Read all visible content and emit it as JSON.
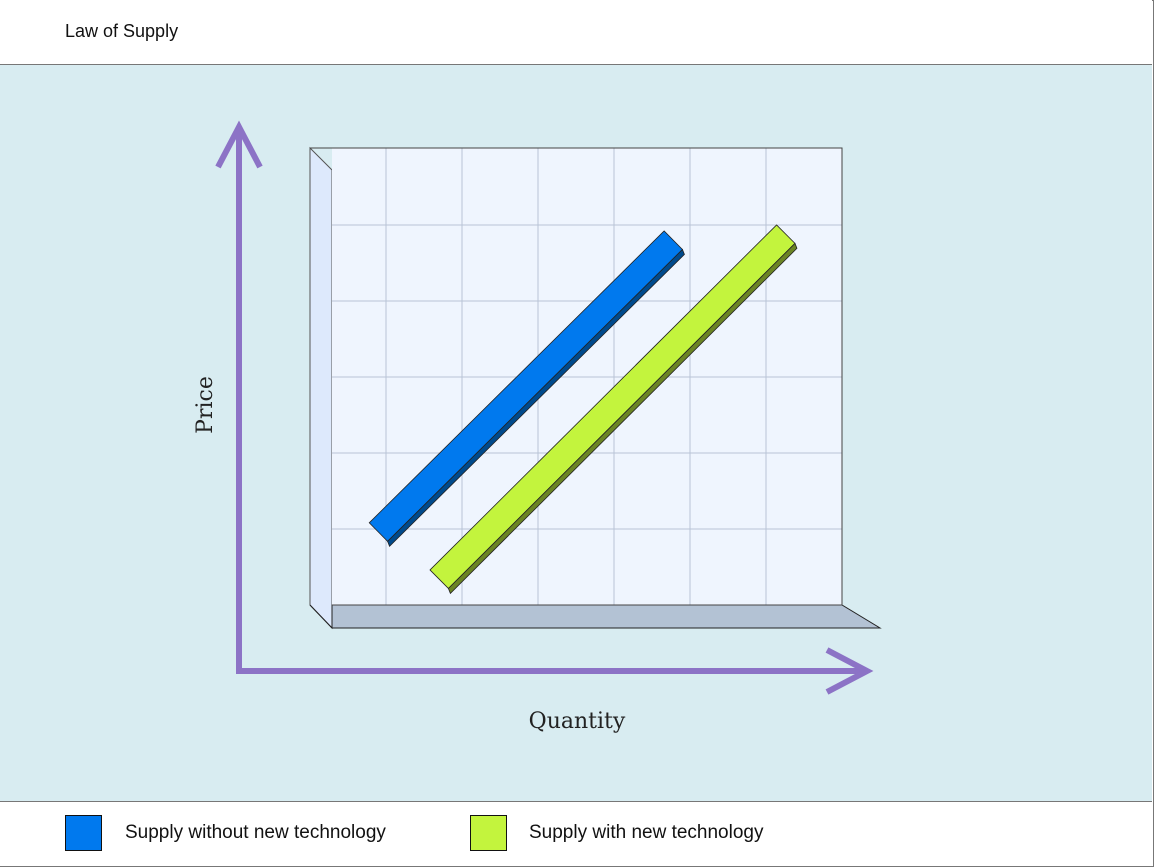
{
  "header": {
    "title": "Law of Supply"
  },
  "colors": {
    "axis": "#8c73c6",
    "series_1": "#0079ee",
    "series_2": "#c3f43d",
    "wall": "#eff5fe",
    "floor": "#b3c2d4"
  },
  "chart_data": {
    "type": "line",
    "title": "Law of Supply",
    "xlabel": "Quantity",
    "ylabel": "Price",
    "grid": true,
    "legend_position": "bottom",
    "xlim": [
      0,
      7
    ],
    "ylim": [
      0,
      6
    ],
    "series": [
      {
        "name": "Supply without new technology",
        "color": "#0079ee",
        "x": [
          0.9,
          4.78
        ],
        "y": [
          0.96,
          4.8
        ]
      },
      {
        "name": "Supply with new technology",
        "color": "#c3f43d",
        "x": [
          1.7,
          6.26
        ],
        "y": [
          0.34,
          4.88
        ]
      }
    ]
  },
  "legend": {
    "items": [
      {
        "label": "Supply without new technology",
        "color": "#0079ee"
      },
      {
        "label": "Supply with new technology",
        "color": "#c3f43d"
      }
    ]
  }
}
